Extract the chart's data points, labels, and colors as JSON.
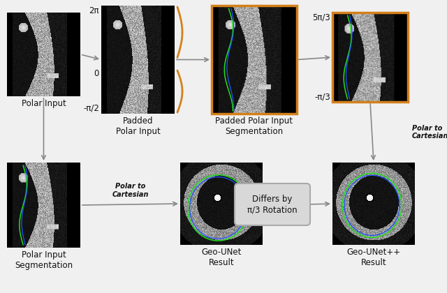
{
  "bg_color": "#f0f0f0",
  "arrow_color": "#888888",
  "orange_color": "#D4801A",
  "text_color": "#111111",
  "green_color": "#22dd22",
  "blue_color": "#2255ff",
  "box_bg": "#d8d8d8",
  "box_edge": "#aaaaaa",
  "labels": {
    "polar_input": "Polar Input",
    "padded_polar": "Padded\nPolar Input",
    "padded_seg": "Padded Polar Input\nSegmentation",
    "polar_seg": "Polar Input\nSegmentation",
    "geo_unet": "Geo-UNet\nResult",
    "geo_unetpp": "Geo-UNet++\nResult",
    "polar_to_cart_right": "Polar to\nCartesian",
    "polar_to_cart_bottom": "Polar to\nCartesian",
    "differs": "Differs by\nπ/3 Rotation"
  },
  "tick_labels": {
    "padded_top": "2π",
    "padded_mid": "0",
    "padded_bot": "-π/2",
    "right_top": "5π/3",
    "right_bot": "-π/3"
  }
}
